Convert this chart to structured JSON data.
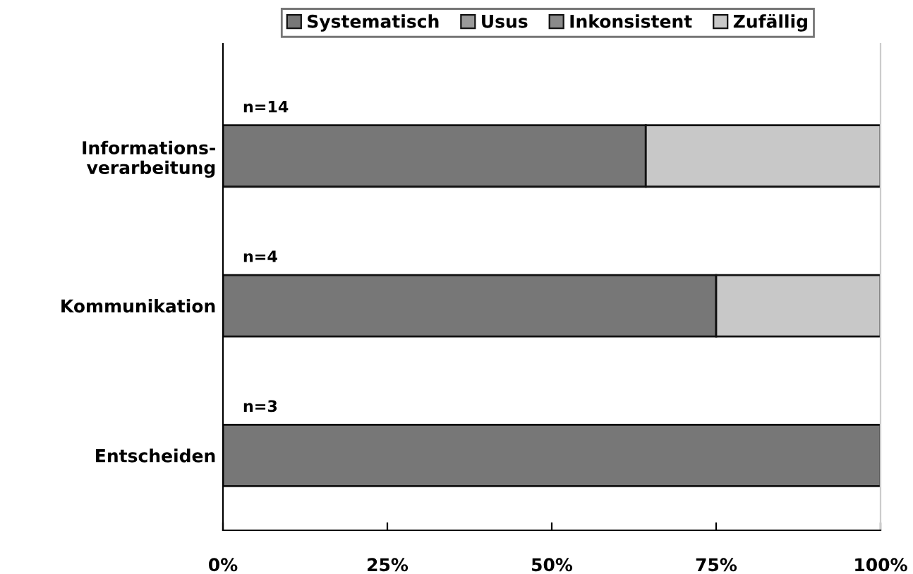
{
  "chart_data": {
    "type": "bar",
    "orientation": "horizontal",
    "stacked": true,
    "categories": [
      "Informations-\nverarbeitung",
      "Kommunikation",
      "Entscheiden"
    ],
    "series": [
      {
        "name": "Systematisch",
        "color": "#777777",
        "values": [
          64.3,
          75,
          100
        ]
      },
      {
        "name": "Usus",
        "color": "#9a9a9a",
        "values": [
          0,
          0,
          0
        ]
      },
      {
        "name": "Inkonsistent",
        "color": "#8a8a8a",
        "values": [
          0,
          0,
          0
        ]
      },
      {
        "name": "Zufällig",
        "color": "#c8c8c8",
        "values": [
          35.7,
          25,
          0
        ]
      }
    ],
    "xlim": [
      0,
      100
    ],
    "xticks": [
      {
        "value": 0,
        "label": "0%"
      },
      {
        "value": 25,
        "label": "25%"
      },
      {
        "value": 50,
        "label": "50%"
      },
      {
        "value": 75,
        "label": "75%"
      },
      {
        "value": 100,
        "label": "100%"
      }
    ],
    "annotations": [
      "n=14",
      "n=4",
      "n=3"
    ],
    "legend": "top",
    "grid": false
  }
}
